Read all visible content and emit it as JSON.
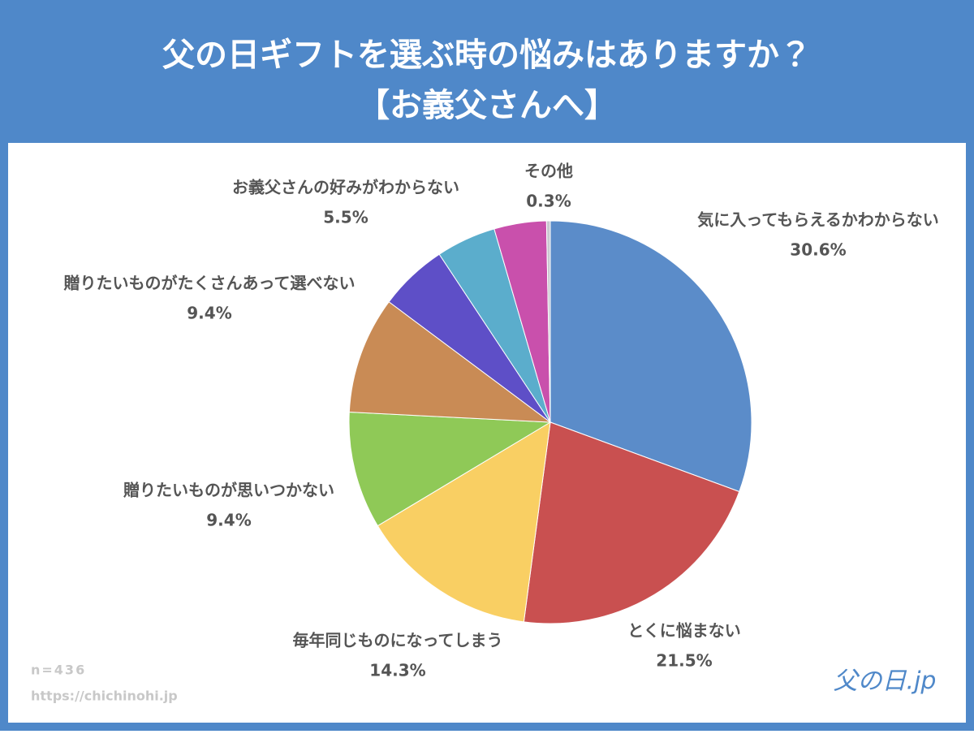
{
  "chart_data": {
    "type": "pie",
    "title": "父の日ギフトを選ぶ時の悩みはありますか？",
    "subtitle": "【お義父さんへ】",
    "categories": [
      "気に入ってもらえるかわからない",
      "とくに悩まない",
      "毎年同じものになってしまう",
      "贈りたいものが思いつかない",
      "贈りたいものがたくさんあって選べない",
      "お義父さんの好みがわからない",
      null,
      null,
      "その他"
    ],
    "values": [
      30.6,
      21.5,
      14.3,
      9.4,
      9.4,
      5.5,
      4.8,
      4.2,
      0.3
    ],
    "value_labels": [
      "30.6%",
      "21.5%",
      "14.3%",
      "9.4%",
      "9.4%",
      "5.5%",
      null,
      null,
      "0.3%"
    ],
    "colors": [
      "#5b8cc9",
      "#c95050",
      "#f9cf63",
      "#8fc957",
      "#c98b55",
      "#5e4fc7",
      "#5badcc",
      "#c950ac",
      "#c8c8d0"
    ],
    "notes": [
      "n=436",
      "https://chichinohi.jp"
    ],
    "logo": "父の日.jp"
  }
}
